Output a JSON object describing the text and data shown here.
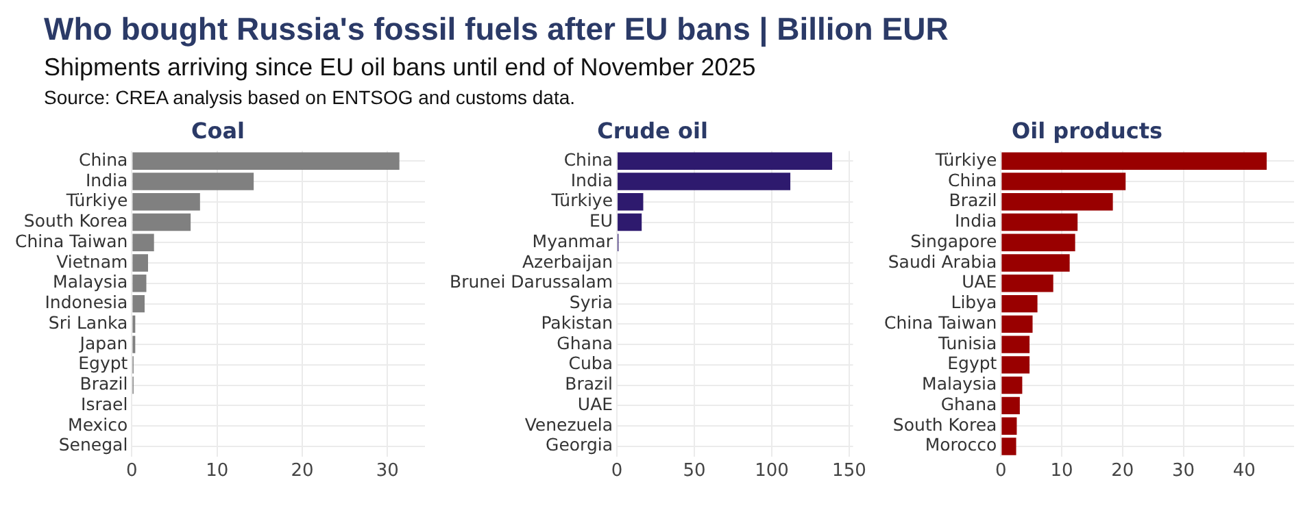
{
  "chart_data": [
    {
      "type": "other",
      "title": "Who bought Russia's fossil fuels after EU bans | Billion EUR",
      "subtitle": "Shipments arriving since EU oil bans until end of November 2025",
      "annotations": [
        "Source: CREA analysis based on ENTSOG and customs data."
      ]
    },
    {
      "type": "bar",
      "orientation": "horizontal",
      "title": "Coal",
      "categories": [
        "China",
        "India",
        "Türkiye",
        "South Korea",
        "China Taiwan",
        "Vietnam",
        "Malaysia",
        "Indonesia",
        "Sri Lanka",
        "Japan",
        "Egypt",
        "Brazil",
        "Israel",
        "Mexico",
        "Senegal"
      ],
      "values": [
        31.4,
        14.3,
        8.0,
        6.9,
        2.6,
        1.9,
        1.7,
        1.5,
        0.4,
        0.4,
        0.2,
        0.2,
        0,
        0,
        0
      ],
      "color": "#808080",
      "xlim": [
        0,
        34.4
      ],
      "xticks": [
        0,
        10,
        20,
        30
      ],
      "grid": true,
      "legend": false
    },
    {
      "type": "bar",
      "orientation": "horizontal",
      "title": "Crude oil",
      "categories": [
        "China",
        "India",
        "Türkiye",
        "EU",
        "Myanmar",
        "Azerbaijan",
        "Brunei Darussalam",
        "Syria",
        "Pakistan",
        "Ghana",
        "Cuba",
        "Brazil",
        "UAE",
        "Venezuela",
        "Georgia"
      ],
      "values": [
        139,
        112,
        17,
        16,
        1,
        0,
        0,
        0,
        0,
        0,
        0,
        0,
        0,
        0,
        0
      ],
      "color": "#2e1a6e",
      "xlim": [
        0,
        152.5
      ],
      "xticks": [
        0,
        50,
        100,
        150
      ],
      "grid": true,
      "legend": false
    },
    {
      "type": "bar",
      "orientation": "horizontal",
      "title": "Oil products",
      "categories": [
        "Türkiye",
        "China",
        "Brazil",
        "India",
        "Singapore",
        "Saudi Arabia",
        "UAE",
        "Libya",
        "China Taiwan",
        "Tunisia",
        "Egypt",
        "Malaysia",
        "Ghana",
        "South Korea",
        "Morocco"
      ],
      "values": [
        43.7,
        20.5,
        18.4,
        12.6,
        12.2,
        11.3,
        8.6,
        6.0,
        5.2,
        4.7,
        4.7,
        3.5,
        3.1,
        2.6,
        2.5
      ],
      "color": "#990000",
      "xlim": [
        0,
        48.2
      ],
      "xticks": [
        0,
        10,
        20,
        30,
        40
      ],
      "grid": true,
      "legend": false
    }
  ]
}
